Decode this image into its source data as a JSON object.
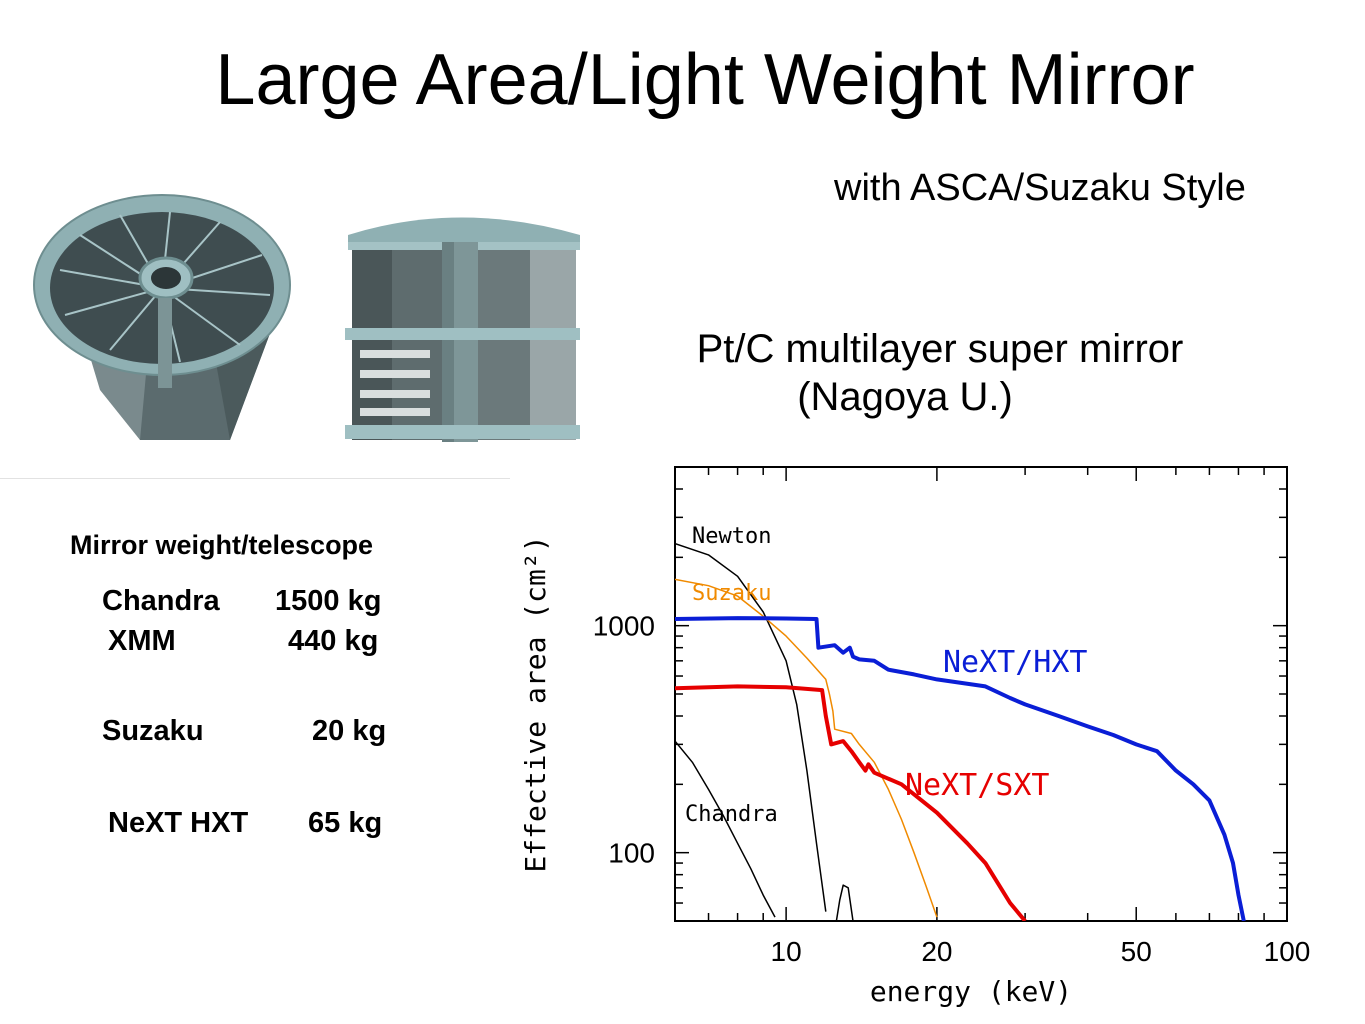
{
  "slide": {
    "title": "Large Area/Light Weight Mirror",
    "subtitle": "with ASCA/Suzaku Style",
    "mirror_label_line1": "Pt/C multilayer super mirror",
    "mirror_label_line2": "(Nagoya U.)"
  },
  "weights": {
    "title": "Mirror weight/telescope",
    "rows": [
      {
        "name": "Chandra",
        "value": "1500 kg"
      },
      {
        "name": "XMM",
        "value": "440 kg"
      },
      {
        "name": "Suzaku",
        "value": "20 kg"
      },
      {
        "name": "NeXT HXT",
        "value": "65 kg"
      }
    ]
  },
  "chart_data": {
    "type": "line",
    "xlabel": "energy (keV)",
    "ylabel": "Effective area (cm²)",
    "xscale": "log",
    "yscale": "log",
    "xlim": [
      6,
      100
    ],
    "ylim": [
      50,
      5000
    ],
    "x_ticks": [
      10,
      20,
      50,
      100
    ],
    "y_ticks": [
      100,
      1000
    ],
    "series": [
      {
        "name": "Newton",
        "color": "#000000",
        "width": 1.5,
        "points": [
          [
            6,
            2300
          ],
          [
            7,
            2050
          ],
          [
            8,
            1650
          ],
          [
            9,
            1150
          ],
          [
            10,
            700
          ],
          [
            10.5,
            450
          ],
          [
            11,
            230
          ],
          [
            11.5,
            110
          ],
          [
            12,
            55
          ]
        ]
      },
      {
        "name": "Suzaku",
        "color": "#f08a00",
        "width": 1.5,
        "points": [
          [
            6,
            1600
          ],
          [
            7,
            1500
          ],
          [
            8,
            1350
          ],
          [
            9,
            1100
          ],
          [
            10,
            900
          ],
          [
            11,
            720
          ],
          [
            12,
            580
          ],
          [
            12.2,
            500
          ],
          [
            12.4,
            420
          ],
          [
            12.5,
            350
          ],
          [
            13.5,
            335
          ],
          [
            14,
            300
          ],
          [
            15,
            250
          ],
          [
            16,
            190
          ],
          [
            17,
            140
          ],
          [
            18,
            100
          ],
          [
            19,
            72
          ],
          [
            20,
            52
          ]
        ]
      },
      {
        "name": "Chandra",
        "color": "#000000",
        "width": 1.5,
        "points": [
          [
            6,
            310
          ],
          [
            6.5,
            250
          ],
          [
            7,
            190
          ],
          [
            7.5,
            145
          ],
          [
            8,
            110
          ],
          [
            8.5,
            85
          ],
          [
            9,
            65
          ],
          [
            9.5,
            52
          ]
        ]
      },
      {
        "name": "NeXT/HXT",
        "color": "#0a1ed6",
        "width": 4,
        "points": [
          [
            6,
            1070
          ],
          [
            8,
            1080
          ],
          [
            10,
            1075
          ],
          [
            11.5,
            1070
          ],
          [
            11.6,
            800
          ],
          [
            12.5,
            820
          ],
          [
            13,
            760
          ],
          [
            13.4,
            800
          ],
          [
            13.6,
            730
          ],
          [
            14,
            710
          ],
          [
            15,
            700
          ],
          [
            16,
            640
          ],
          [
            18,
            610
          ],
          [
            20,
            580
          ],
          [
            25,
            540
          ],
          [
            28,
            480
          ],
          [
            30,
            450
          ],
          [
            35,
            400
          ],
          [
            40,
            360
          ],
          [
            45,
            330
          ],
          [
            50,
            300
          ],
          [
            55,
            280
          ],
          [
            60,
            230
          ],
          [
            65,
            200
          ],
          [
            70,
            170
          ],
          [
            75,
            120
          ],
          [
            78,
            90
          ],
          [
            80,
            65
          ],
          [
            82,
            50
          ]
        ]
      },
      {
        "name": "NeXT/SXT",
        "color": "#e60000",
        "width": 4,
        "points": [
          [
            6,
            530
          ],
          [
            8,
            540
          ],
          [
            10,
            535
          ],
          [
            11.8,
            520
          ],
          [
            12,
            400
          ],
          [
            12.3,
            300
          ],
          [
            13,
            310
          ],
          [
            13.5,
            280
          ],
          [
            14,
            250
          ],
          [
            14.4,
            230
          ],
          [
            14.6,
            245
          ],
          [
            15,
            225
          ],
          [
            17,
            200
          ],
          [
            20,
            150
          ],
          [
            23,
            110
          ],
          [
            25,
            90
          ],
          [
            28,
            60
          ],
          [
            30,
            50
          ]
        ]
      }
    ],
    "extra_lines": [
      {
        "name": "Newton-dip",
        "color": "#000000",
        "width": 1.5,
        "points": [
          [
            12.6,
            50
          ],
          [
            12.8,
            62
          ],
          [
            13.0,
            72
          ],
          [
            13.3,
            70
          ],
          [
            13.6,
            50
          ]
        ]
      }
    ],
    "annotations": [
      {
        "text": "Newton",
        "color": "#000000"
      },
      {
        "text": "Suzaku",
        "color": "#f08a00"
      },
      {
        "text": "Chandra",
        "color": "#000000"
      },
      {
        "text": "NeXT/HXT",
        "color": "#0a1ed6"
      },
      {
        "text": "NeXT/SXT",
        "color": "#e60000"
      }
    ]
  }
}
